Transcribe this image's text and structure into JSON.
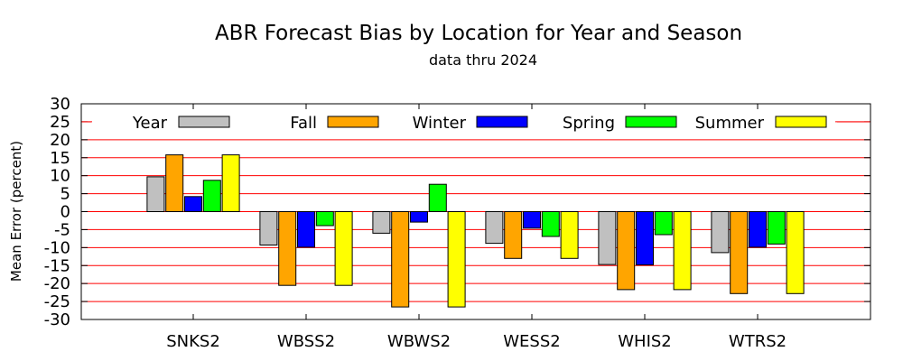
{
  "chart_data": {
    "type": "bar",
    "title": "ABR Forecast Bias by Location for Year and Season",
    "subtitle": "data thru 2024",
    "xlabel": "",
    "ylabel": "Mean Error (percent)",
    "ylim": [
      -30,
      30
    ],
    "yticks": [
      "30",
      "25",
      "20",
      "15",
      "10",
      "5",
      "0",
      "-5",
      "-10",
      "-15",
      "-20",
      "-25",
      "-30"
    ],
    "grid": true,
    "legend_position": "top",
    "categories": [
      "SNKS2",
      "WBSS2",
      "WBWS2",
      "WESS2",
      "WHIS2",
      "WTRS2"
    ],
    "series": [
      {
        "name": "Year",
        "color": "#c0c0c0",
        "values": [
          9.7,
          -9.3,
          -6.0,
          -8.8,
          -14.7,
          -11.4
        ]
      },
      {
        "name": "Fall",
        "color": "#ffa500",
        "values": [
          15.8,
          -20.5,
          -26.5,
          -13.0,
          -21.7,
          -22.8
        ]
      },
      {
        "name": "Winter",
        "color": "#0000ff",
        "values": [
          4.2,
          -9.9,
          -2.9,
          -4.6,
          -14.8,
          -9.9
        ]
      },
      {
        "name": "Spring",
        "color": "#00ff00",
        "values": [
          8.7,
          -3.9,
          7.6,
          -6.9,
          -6.4,
          -9.0
        ]
      },
      {
        "name": "Summer",
        "color": "#ffff00",
        "values": [
          15.8,
          -20.5,
          -26.5,
          -13.0,
          -21.7,
          -22.8
        ]
      }
    ],
    "gridline_color": "#ff0000"
  }
}
